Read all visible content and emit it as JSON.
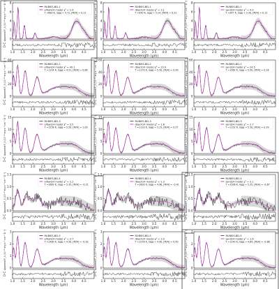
{
  "figure": {
    "layout": "5 rows x 3 columns grid of spectral-fit panels, each with a residual (O-C) sub-panel",
    "spectrum_ylabel": "Apparent F_λ (10⁻¹⁸ erg s⁻¹ cm⁻² Å⁻¹)",
    "residual_ylabel": "O-C",
    "xlabel": "Wavelength (μm)",
    "x_ticks": [
      "1.0",
      "1.5",
      "2.0",
      "2.5",
      "3.0",
      "3.5",
      "4.0",
      "4.5"
    ],
    "colors": {
      "data": "#111111",
      "model": "#cc33cc",
      "error_band": "#b8b8b8",
      "frame": "#333333"
    }
  },
  "chart_data": [
    {
      "type": "line",
      "object": "RUBIES-BD-1",
      "model_label": "elfowl24 model χ² = 2.4",
      "params": "T =880 K, logg = 4.72, [M/H] = 0.12",
      "xlim": [
        1.0,
        5.0
      ],
      "ylim": [
        0,
        8
      ],
      "y_ticks": [
        "0",
        "2",
        "4",
        "6",
        "8"
      ],
      "highlighted": true,
      "shape": "t"
    },
    {
      "type": "line",
      "object": "RUBIES-BD-1",
      "model_label": "dbach24 model χ² = 3.1",
      "params": "T =949 K, logg = 5.24, [M/H] = 0.31",
      "xlim": [
        1.0,
        5.0
      ],
      "ylim": [
        0,
        8
      ],
      "y_ticks": [
        "0",
        "2",
        "4",
        "6",
        "8"
      ],
      "highlighted": false,
      "shape": "t"
    },
    {
      "type": "line",
      "object": "RUBIES-BD-1",
      "model_label": "sand24 model χ² = 4.0",
      "params": "T =947 K, logg = 5.50, [M/H] = 0.12",
      "xlim": [
        1.0,
        5.0
      ],
      "ylim": [
        0,
        8
      ],
      "y_ticks": [
        "0",
        "2",
        "4",
        "6",
        "8"
      ],
      "highlighted": false,
      "shape": "t"
    },
    {
      "type": "line",
      "object": "RUBIES-BD-2",
      "model_label": "elfowl24 model χ² = 49.1",
      "params": "T =1144 K, logg = 4.51, [M/H] = 0.88",
      "xlim": [
        1.0,
        5.0
      ],
      "ylim": [
        0,
        60
      ],
      "y_ticks": [
        "0",
        "20",
        "40",
        "60"
      ],
      "highlighted": false,
      "shape": "l"
    },
    {
      "type": "line",
      "object": "RUBIES-BD-2",
      "model_label": "dbach24 model χ² = 23.9",
      "params": "T =1170 K, logg = 5.50, [M/H] = 0.90",
      "xlim": [
        1.0,
        5.0
      ],
      "ylim": [
        0,
        60
      ],
      "y_ticks": [
        "0",
        "20",
        "40",
        "60"
      ],
      "highlighted": true,
      "shape": "l"
    },
    {
      "type": "line",
      "object": "RUBIES-BD-2",
      "model_label": "sand24 model χ² = 24.5",
      "params": "T =1062 K, logg = 5.50, [M/H] = 0.16",
      "xlim": [
        1.0,
        5.0
      ],
      "ylim": [
        0,
        60
      ],
      "y_ticks": [
        "0",
        "20",
        "40",
        "60"
      ],
      "highlighted": false,
      "shape": "l"
    },
    {
      "type": "line",
      "object": "RUBIES-BD-3",
      "model_label": "elfowl24 model χ² = 3.5",
      "params": "T =1158 K, logg = 5.50, [M/H] = 1.00",
      "xlim": [
        1.0,
        5.0
      ],
      "ylim": [
        0,
        15
      ],
      "y_ticks": [
        "0",
        "5",
        "10",
        "15"
      ],
      "highlighted": false,
      "shape": "l"
    },
    {
      "type": "line",
      "object": "RUBIES-BD-3",
      "model_label": "dbach24 model χ² = 2.8",
      "params": "T =1110 K, logg = 5.23, [M/H] = 0.57",
      "xlim": [
        1.0,
        5.0
      ],
      "ylim": [
        0,
        15
      ],
      "y_ticks": [
        "0",
        "5",
        "10",
        "15"
      ],
      "highlighted": true,
      "shape": "l"
    },
    {
      "type": "line",
      "object": "RUBIES-BD-3",
      "model_label": "sand24 model χ² = 2.7",
      "params": "T =1152 K, logg = 5.50, [M/H] = 0.39",
      "xlim": [
        1.0,
        5.0
      ],
      "ylim": [
        0,
        15
      ],
      "y_ticks": [
        "0",
        "5",
        "10",
        "15"
      ],
      "highlighted": false,
      "shape": "l"
    },
    {
      "type": "line",
      "object": "RUBIES-BD-4",
      "model_label": "elfowl24 model χ² = 2.2",
      "params": "T =1663 K, logg = 5.35, [M/H] = -0.21",
      "xlim": [
        1.0,
        5.0
      ],
      "ylim": [
        0,
        1.5
      ],
      "y_ticks": [
        "0.0",
        "0.5",
        "1.0",
        "1.5"
      ],
      "highlighted": false,
      "shape": "n"
    },
    {
      "type": "line",
      "object": "RUBIES-BD-4",
      "model_label": "dbach24 model χ² = 2.3",
      "params": "T =1603 K, logg = 4.96, [M/H] = -0.41",
      "xlim": [
        1.0,
        5.0
      ],
      "ylim": [
        0,
        1.5
      ],
      "y_ticks": [
        "0.0",
        "0.5",
        "1.0",
        "1.5"
      ],
      "highlighted": false,
      "shape": "n"
    },
    {
      "type": "line",
      "object": "RUBIES-BD-4",
      "model_label": "sand24 model χ² = 2.1",
      "params": "T =1506 K, logg = 5.35, [M/H] = -0.67",
      "xlim": [
        1.0,
        5.0
      ],
      "ylim": [
        0,
        1.5
      ],
      "y_ticks": [
        "0.0",
        "0.5",
        "1.0",
        "1.5"
      ],
      "highlighted": true,
      "shape": "n"
    },
    {
      "type": "line",
      "object": "RUBIES-BD-5",
      "model_label": "elfowl24 model χ² = 3.7",
      "params": "T =1480 K, logg = 4.50, [M/H] = -0.02",
      "xlim": [
        1.0,
        5.0
      ],
      "ylim": [
        0,
        3
      ],
      "y_ticks": [
        "0",
        "1",
        "2",
        "3"
      ],
      "highlighted": false,
      "shape": "l"
    },
    {
      "type": "line",
      "object": "RUBIES-BD-5",
      "model_label": "dbach24 model χ² = 3.0",
      "params": "T =1278 K, logg = 4.90, [M/H] = 0.40",
      "xlim": [
        1.0,
        5.0
      ],
      "ylim": [
        0,
        3
      ],
      "y_ticks": [
        "0",
        "1",
        "2",
        "3"
      ],
      "highlighted": false,
      "shape": "l"
    },
    {
      "type": "line",
      "object": "RUBIES-BD-5",
      "model_label": "sand24 model χ² = 1.6",
      "params": "T =1240 K, logg = 4.64, [M/H] = -0.66",
      "xlim": [
        1.0,
        5.0
      ],
      "ylim": [
        0,
        3
      ],
      "y_ticks": [
        "0",
        "1",
        "2",
        "3"
      ],
      "highlighted": true,
      "shape": "l"
    }
  ]
}
